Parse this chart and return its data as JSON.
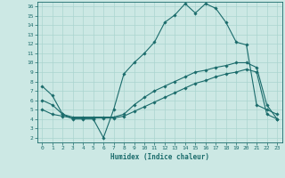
{
  "xlabel": "Humidex (Indice chaleur)",
  "xlim": [
    -0.5,
    23.5
  ],
  "ylim": [
    1.5,
    16.5
  ],
  "xticks": [
    0,
    1,
    2,
    3,
    4,
    5,
    6,
    7,
    8,
    9,
    10,
    11,
    12,
    13,
    14,
    15,
    16,
    17,
    18,
    19,
    20,
    21,
    22,
    23
  ],
  "yticks": [
    2,
    3,
    4,
    5,
    6,
    7,
    8,
    9,
    10,
    11,
    12,
    13,
    14,
    15,
    16
  ],
  "bg_color": "#cce8e4",
  "line_color": "#1a6b6b",
  "grid_color": "#aad4cf",
  "line1_y": [
    7.5,
    6.5,
    4.5,
    4.0,
    4.0,
    4.0,
    2.0,
    5.0,
    8.8,
    10.0,
    11.0,
    12.2,
    14.3,
    15.1,
    16.3,
    15.3,
    16.3,
    15.8,
    14.3,
    12.2,
    11.9,
    5.5,
    5.0,
    4.5
  ],
  "line2_y": [
    6.0,
    5.5,
    4.5,
    4.2,
    4.2,
    4.2,
    4.2,
    4.2,
    4.5,
    5.5,
    6.3,
    7.0,
    7.5,
    8.0,
    8.5,
    9.0,
    9.2,
    9.5,
    9.7,
    10.0,
    10.0,
    9.5,
    5.5,
    4.0
  ],
  "line3_y": [
    5.0,
    4.5,
    4.3,
    4.1,
    4.1,
    4.1,
    4.1,
    4.1,
    4.3,
    4.8,
    5.3,
    5.8,
    6.3,
    6.8,
    7.3,
    7.8,
    8.1,
    8.5,
    8.8,
    9.0,
    9.3,
    9.0,
    4.5,
    4.0
  ]
}
